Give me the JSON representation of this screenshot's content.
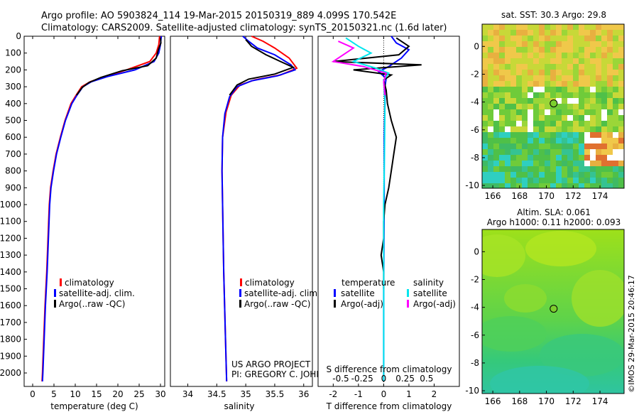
{
  "header": {
    "line1": "Argo profile: AO 5903824_114 19-Mar-2015 20150319_889 4.099S 170.542E",
    "line2": "Climatology: CARS2009. Satellite-adjusted climatology: synTS_20150321.nc (1.6d later)"
  },
  "colors": {
    "climatology": "#ff0000",
    "satellite": "#0000ff",
    "argo": "#000000",
    "sat_s": "#00e5ee",
    "argo_s": "#ff00ff"
  },
  "chart_data": [
    {
      "id": "temperature",
      "type": "line",
      "xlabel": "temperature (deg C)",
      "ylabel": "",
      "xlim": [
        -2,
        31
      ],
      "ylim": [
        2080,
        0
      ],
      "x_ticks": [
        "0",
        "5",
        "10",
        "15",
        "20",
        "25",
        "30"
      ],
      "x_tick_values": [
        0,
        5,
        10,
        15,
        20,
        25,
        30
      ],
      "y_ticks": [
        "0",
        "100",
        "200",
        "300",
        "400",
        "500",
        "600",
        "700",
        "800",
        "900",
        "1000",
        "1100",
        "1200",
        "1300",
        "1400",
        "1500",
        "1600",
        "1700",
        "1800",
        "1900",
        "2000"
      ],
      "legend": [
        "climatology",
        "satellite-adj. clim.",
        "Argo(..raw -QC)"
      ],
      "series": [
        {
          "name": "climatology",
          "color": "#ff0000",
          "points": [
            [
              29.8,
              0
            ],
            [
              29.6,
              50
            ],
            [
              29.0,
              100
            ],
            [
              27.5,
              150
            ],
            [
              22,
              200
            ],
            [
              17,
              240
            ],
            [
              13.5,
              270
            ],
            [
              11.5,
              300
            ],
            [
              10.2,
              350
            ],
            [
              9.0,
              400
            ],
            [
              7.6,
              500
            ],
            [
              6.5,
              600
            ],
            [
              5.5,
              700
            ],
            [
              4.8,
              800
            ],
            [
              4.2,
              900
            ],
            [
              3.9,
              1000
            ],
            [
              3.6,
              1200
            ],
            [
              3.3,
              1400
            ],
            [
              2.9,
              1600
            ],
            [
              2.6,
              1800
            ],
            [
              2.3,
              2000
            ],
            [
              2.2,
              2050
            ]
          ]
        },
        {
          "name": "satellite-adj. clim.",
          "color": "#0000ff",
          "points": [
            [
              30.2,
              0
            ],
            [
              30.0,
              50
            ],
            [
              29.6,
              100
            ],
            [
              28.5,
              150
            ],
            [
              24,
              200
            ],
            [
              17.5,
              240
            ],
            [
              13.8,
              270
            ],
            [
              11.8,
              300
            ],
            [
              10.4,
              350
            ],
            [
              9.2,
              400
            ],
            [
              7.7,
              500
            ],
            [
              6.6,
              600
            ],
            [
              5.6,
              700
            ],
            [
              4.9,
              800
            ],
            [
              4.3,
              900
            ],
            [
              4.0,
              1000
            ],
            [
              3.7,
              1200
            ],
            [
              3.4,
              1400
            ],
            [
              3.0,
              1600
            ],
            [
              2.7,
              1800
            ],
            [
              2.4,
              2000
            ],
            [
              2.3,
              2050
            ]
          ]
        },
        {
          "name": "Argo(..raw -QC)",
          "color": "#000000",
          "points": [
            [
              30.0,
              10
            ],
            [
              30.1,
              40
            ],
            [
              29.5,
              80
            ],
            [
              29.0,
              130
            ],
            [
              27.0,
              175
            ],
            [
              21,
              205
            ],
            [
              16,
              245
            ],
            [
              13.2,
              275
            ],
            [
              11.6,
              305
            ],
            [
              10.3,
              350
            ]
          ]
        }
      ]
    },
    {
      "id": "salinity",
      "type": "line",
      "xlabel": "salinity",
      "xlim": [
        33.7,
        36.15
      ],
      "ylim": [
        2080,
        0
      ],
      "x_ticks": [
        "34",
        "34.5",
        "35",
        "35.5",
        "36"
      ],
      "x_tick_values": [
        34,
        34.5,
        35,
        35.5,
        36
      ],
      "legend": [
        "climatology",
        "satellite-adj. clim.",
        "Argo(..raw -QC)"
      ],
      "annotation": [
        "US ARGO PROJECT",
        "PI: GREGORY C. JOHNSON"
      ],
      "series": [
        {
          "name": "climatology",
          "color": "#ff0000",
          "points": [
            [
              35.1,
              0
            ],
            [
              35.3,
              30
            ],
            [
              35.5,
              70
            ],
            [
              35.75,
              130
            ],
            [
              35.88,
              190
            ],
            [
              35.6,
              230
            ],
            [
              35.15,
              260
            ],
            [
              34.9,
              290
            ],
            [
              34.75,
              350
            ],
            [
              34.66,
              450
            ],
            [
              34.6,
              600
            ],
            [
              34.59,
              800
            ],
            [
              34.6,
              1000
            ],
            [
              34.62,
              1400
            ],
            [
              34.65,
              1800
            ],
            [
              34.67,
              2050
            ]
          ]
        },
        {
          "name": "satellite-adj. clim.",
          "color": "#0000ff",
          "points": [
            [
              34.95,
              0
            ],
            [
              35.05,
              30
            ],
            [
              35.2,
              70
            ],
            [
              35.5,
              110
            ],
            [
              35.78,
              170
            ],
            [
              35.85,
              200
            ],
            [
              35.55,
              235
            ],
            [
              35.1,
              265
            ],
            [
              34.85,
              300
            ],
            [
              34.72,
              360
            ],
            [
              34.64,
              460
            ],
            [
              34.6,
              600
            ],
            [
              34.59,
              800
            ],
            [
              34.6,
              1000
            ],
            [
              34.62,
              1400
            ],
            [
              34.65,
              1800
            ],
            [
              34.67,
              2050
            ]
          ]
        },
        {
          "name": "Argo(..raw -QC)",
          "color": "#000000",
          "points": [
            [
              35.0,
              20
            ],
            [
              35.1,
              60
            ],
            [
              35.35,
              110
            ],
            [
              35.6,
              150
            ],
            [
              35.82,
              185
            ],
            [
              35.5,
              225
            ],
            [
              35.05,
              255
            ],
            [
              34.85,
              290
            ],
            [
              34.72,
              350
            ]
          ]
        }
      ]
    },
    {
      "id": "difference",
      "type": "line",
      "xlabel": "T difference from climatology",
      "xlabel_top": "S difference from climatology",
      "xlim": [
        -2.6,
        3.0
      ],
      "ylim": [
        2080,
        0
      ],
      "x_ticks": [
        "-2",
        "-1",
        "0",
        "1",
        "2"
      ],
      "x_tick_values": [
        -2,
        -1,
        0,
        1,
        2
      ],
      "s_ticks": [
        "-0.5",
        "-0.25",
        "0",
        "0.25",
        "0.5"
      ],
      "s_tick_values": [
        -0.5,
        -0.25,
        0,
        0.25,
        0.5
      ],
      "legend_left_title": "temperature",
      "legend_right_title": "salinity",
      "legend": [
        "satellite",
        "Argo(-adj)",
        "satellite",
        "Argo(-adj)"
      ],
      "series": [
        {
          "name": "T satellite",
          "color": "#0000ff",
          "points": [
            [
              0.3,
              0
            ],
            [
              0.5,
              40
            ],
            [
              1.0,
              80
            ],
            [
              0.7,
              130
            ],
            [
              0.2,
              180
            ],
            [
              -0.2,
              210
            ],
            [
              0.1,
              250
            ],
            [
              0.05,
              300
            ],
            [
              0.05,
              400
            ],
            [
              0.02,
              600
            ],
            [
              0.02,
              1000
            ],
            [
              0.0,
              1500
            ],
            [
              0.0,
              2050
            ]
          ]
        },
        {
          "name": "T Argo(-adj)",
          "color": "#000000",
          "points": [
            [
              0.5,
              10
            ],
            [
              1.0,
              60
            ],
            [
              0.6,
              110
            ],
            [
              -2.0,
              150
            ],
            [
              1.5,
              170
            ],
            [
              -1.2,
              200
            ],
            [
              0.3,
              230
            ],
            [
              0.0,
              260
            ],
            [
              0.1,
              320
            ],
            [
              0.15,
              400
            ],
            [
              0.3,
              500
            ],
            [
              0.5,
              600
            ],
            [
              0.4,
              700
            ],
            [
              0.3,
              800
            ],
            [
              0.2,
              900
            ],
            [
              0.05,
              1000
            ],
            [
              0.0,
              1100
            ],
            [
              0.0,
              1200
            ],
            [
              -0.1,
              1300
            ],
            [
              0.0,
              1400
            ],
            [
              0.0,
              1500
            ]
          ]
        },
        {
          "name": "S satellite",
          "color": "#00e5ee",
          "points": [
            [
              -1.5,
              10
            ],
            [
              -1.0,
              60
            ],
            [
              -0.5,
              100
            ],
            [
              -1.2,
              150
            ],
            [
              -0.3,
              190
            ],
            [
              0.2,
              220
            ],
            [
              0.0,
              260
            ],
            [
              0.05,
              400
            ],
            [
              0.03,
              700
            ],
            [
              0.0,
              1000
            ],
            [
              0.0,
              1500
            ],
            [
              0.0,
              2050
            ]
          ]
        },
        {
          "name": "S Argo(-adj)",
          "color": "#ff00ff",
          "points": [
            [
              -1.8,
              30
            ],
            [
              -1.2,
              70
            ],
            [
              -2.0,
              150
            ],
            [
              -0.8,
              180
            ],
            [
              0.1,
              220
            ],
            [
              0.0,
              270
            ],
            [
              0.05,
              350
            ]
          ]
        }
      ]
    },
    {
      "id": "sst_map",
      "type": "heatmap",
      "title": "sat. SST: 30.3 Argo: 29.8",
      "x_ticks": [
        "166",
        "168",
        "170",
        "172",
        "174"
      ],
      "x_tick_values": [
        166,
        168,
        170,
        172,
        174
      ],
      "y_ticks": [
        "0",
        "-2",
        "-4",
        "-6",
        "-8",
        "-10"
      ],
      "y_tick_values": [
        0,
        -2,
        -4,
        -6,
        -8,
        -10
      ],
      "xlim": [
        165.2,
        175.8
      ],
      "ylim": [
        -10.2,
        1.6
      ],
      "marker": [
        170.542,
        -4.099
      ]
    },
    {
      "id": "sla_map",
      "type": "heatmap",
      "title": "Altim. SLA: 0.061",
      "subtitle": "Argo h1000: 0.11 h2000: 0.093",
      "x_ticks": [
        "166",
        "168",
        "170",
        "172",
        "174"
      ],
      "x_tick_values": [
        166,
        168,
        170,
        172,
        174
      ],
      "y_ticks": [
        "0",
        "-2",
        "-4",
        "-6",
        "-8",
        "-10"
      ],
      "y_tick_values": [
        0,
        -2,
        -4,
        -6,
        -8,
        -10
      ],
      "xlim": [
        165.2,
        175.8
      ],
      "ylim": [
        -10.2,
        1.6
      ],
      "marker": [
        170.542,
        -4.099
      ]
    }
  ],
  "credit": "©IMOS 29-Mar-2015 20:46:17"
}
